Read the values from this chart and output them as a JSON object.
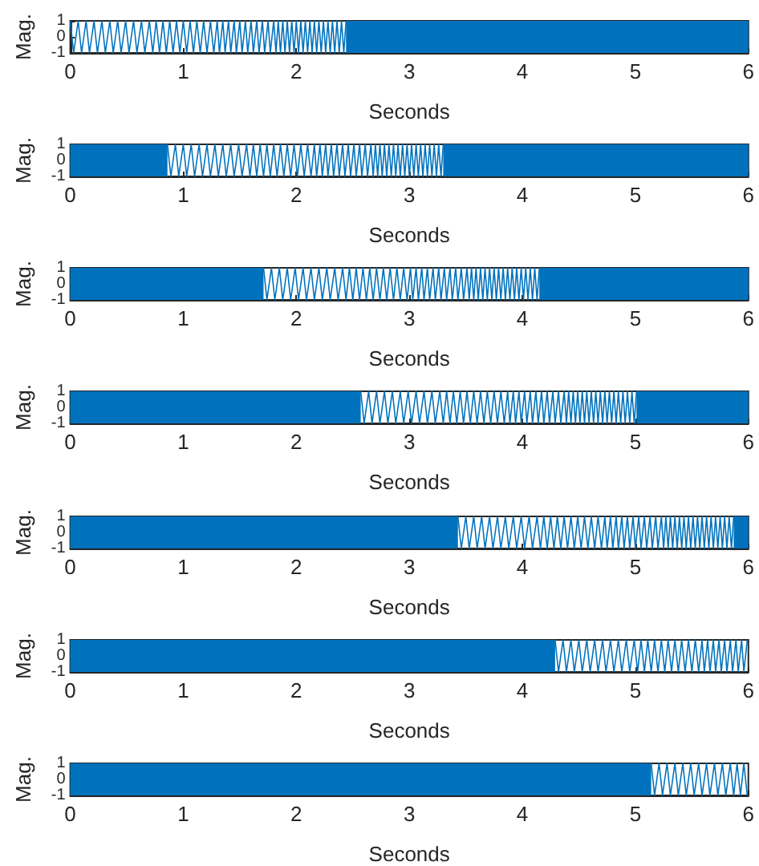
{
  "chart_data": [
    {
      "type": "line",
      "xlabel": "Seconds",
      "ylabel": "Mag.",
      "color": "#0072bd",
      "marker": "none",
      "xlim": [
        0,
        6
      ],
      "xticks": [
        0,
        1,
        2,
        3,
        4,
        5,
        6
      ],
      "ylim": [
        -1,
        1
      ],
      "yticks": [
        -1,
        0,
        1
      ],
      "x": [
        0,
        0.03,
        0.07,
        0.1,
        0.14,
        0.17,
        0.21,
        0.24,
        0.28,
        0.31,
        0.35,
        0.38,
        0.42,
        0.45,
        0.49,
        0.52,
        0.56,
        0.59,
        0.63,
        0.66,
        0.7,
        0.73,
        0.76,
        0.79,
        0.82,
        0.85,
        0.88,
        0.91,
        0.94,
        0.97,
        1.0,
        1.03,
        1.06,
        1.09,
        1.12,
        1.15,
        1.18,
        1.21,
        1.24,
        1.27,
        1.3,
        1.32,
        1.35,
        1.37,
        1.4,
        1.42,
        1.45,
        1.47,
        1.5,
        1.52,
        1.55,
        1.57,
        1.6,
        1.62,
        1.65,
        1.67,
        1.7,
        1.72,
        1.75,
        1.77,
        1.8,
        1.82,
        1.84,
        1.86,
        1.88,
        1.9,
        1.92,
        1.94,
        1.96,
        1.98,
        2.0,
        2.02,
        2.04,
        2.06,
        2.08,
        2.1,
        2.12,
        2.14,
        2.16,
        2.18,
        2.2,
        2.22,
        2.24,
        2.26,
        2.28,
        2.3,
        2.32,
        2.34,
        2.36,
        2.38,
        2.4,
        2.42,
        2.44
      ],
      "values": [
        1,
        -1,
        1,
        -1,
        1,
        -1,
        1,
        -1,
        1,
        -1,
        1,
        -1,
        1,
        -1,
        1,
        -1,
        1,
        -1,
        1,
        -1,
        1,
        -1,
        1,
        -1,
        1,
        -1,
        1,
        -1,
        1,
        -1,
        1,
        -1,
        1,
        -1,
        1,
        -1,
        1,
        -1,
        1,
        -1,
        1,
        -1,
        1,
        -1,
        1,
        -1,
        1,
        -1,
        1,
        -1,
        1,
        -1,
        1,
        -1,
        1,
        -1,
        1,
        -1,
        1,
        -1,
        1,
        -1,
        1,
        -1,
        1,
        -1,
        1,
        -1,
        1,
        -1,
        1,
        -1,
        1,
        -1,
        1,
        -1,
        1,
        -1,
        1,
        -1,
        1,
        -1,
        1,
        -1,
        1,
        -1,
        1,
        -1,
        1,
        -1,
        1,
        -1,
        1
      ],
      "bands": [
        {
          "axis": "x",
          "from": 2.44,
          "to": 6,
          "color": "#0072bd"
        }
      ]
    },
    {
      "type": "line",
      "xlabel": "Seconds",
      "ylabel": "Mag.",
      "color": "#0072bd",
      "marker": "none",
      "xlim": [
        0,
        6
      ],
      "xticks": [
        0,
        1,
        2,
        3,
        4,
        5,
        6
      ],
      "ylim": [
        -1,
        1
      ],
      "yticks": [
        -1,
        0,
        1
      ],
      "x": [
        0.86,
        0.89,
        0.93,
        0.96,
        1.0,
        1.03,
        1.07,
        1.1,
        1.14,
        1.17,
        1.21,
        1.24,
        1.28,
        1.31,
        1.35,
        1.38,
        1.42,
        1.45,
        1.49,
        1.52,
        1.56,
        1.59,
        1.62,
        1.65,
        1.68,
        1.71,
        1.74,
        1.77,
        1.8,
        1.83,
        1.86,
        1.89,
        1.92,
        1.95,
        1.98,
        2.01,
        2.04,
        2.07,
        2.1,
        2.13,
        2.16,
        2.18,
        2.21,
        2.23,
        2.26,
        2.28,
        2.31,
        2.33,
        2.36,
        2.38,
        2.41,
        2.43,
        2.46,
        2.48,
        2.51,
        2.53,
        2.56,
        2.58,
        2.61,
        2.63,
        2.66,
        2.68,
        2.7,
        2.72,
        2.74,
        2.76,
        2.78,
        2.8,
        2.82,
        2.84,
        2.86,
        2.88,
        2.9,
        2.92,
        2.94,
        2.96,
        2.98,
        3.0,
        3.02,
        3.04,
        3.06,
        3.08,
        3.1,
        3.12,
        3.14,
        3.16,
        3.18,
        3.2,
        3.22,
        3.24,
        3.26,
        3.28,
        3.3
      ],
      "values": [
        1,
        -1,
        1,
        -1,
        1,
        -1,
        1,
        -1,
        1,
        -1,
        1,
        -1,
        1,
        -1,
        1,
        -1,
        1,
        -1,
        1,
        -1,
        1,
        -1,
        1,
        -1,
        1,
        -1,
        1,
        -1,
        1,
        -1,
        1,
        -1,
        1,
        -1,
        1,
        -1,
        1,
        -1,
        1,
        -1,
        1,
        -1,
        1,
        -1,
        1,
        -1,
        1,
        -1,
        1,
        -1,
        1,
        -1,
        1,
        -1,
        1,
        -1,
        1,
        -1,
        1,
        -1,
        1,
        -1,
        1,
        -1,
        1,
        -1,
        1,
        -1,
        1,
        -1,
        1,
        -1,
        1,
        -1,
        1,
        -1,
        1,
        -1,
        1,
        -1,
        1,
        -1,
        1,
        -1,
        1,
        -1,
        1,
        -1,
        1,
        -1,
        1,
        -1,
        1
      ],
      "bands": [
        {
          "axis": "x",
          "from": 0,
          "to": 0.86,
          "color": "#0072bd"
        },
        {
          "axis": "x",
          "from": 3.3,
          "to": 6,
          "color": "#0072bd"
        }
      ]
    },
    {
      "type": "line",
      "xlabel": "Seconds",
      "ylabel": "Mag.",
      "color": "#0072bd",
      "marker": "none",
      "xlim": [
        0,
        6
      ],
      "xticks": [
        0,
        1,
        2,
        3,
        4,
        5,
        6
      ],
      "ylim": [
        -1,
        1
      ],
      "yticks": [
        -1,
        0,
        1
      ],
      "x": [
        1.71,
        1.74,
        1.78,
        1.81,
        1.85,
        1.88,
        1.92,
        1.95,
        1.99,
        2.02,
        2.06,
        2.09,
        2.13,
        2.16,
        2.2,
        2.23,
        2.27,
        2.3,
        2.34,
        2.37,
        2.41,
        2.44,
        2.47,
        2.5,
        2.53,
        2.56,
        2.59,
        2.62,
        2.65,
        2.68,
        2.71,
        2.74,
        2.77,
        2.8,
        2.83,
        2.86,
        2.89,
        2.92,
        2.95,
        2.98,
        3.01,
        3.03,
        3.06,
        3.08,
        3.11,
        3.13,
        3.16,
        3.18,
        3.21,
        3.23,
        3.26,
        3.28,
        3.31,
        3.33,
        3.36,
        3.38,
        3.41,
        3.43,
        3.46,
        3.48,
        3.51,
        3.53,
        3.55,
        3.57,
        3.59,
        3.61,
        3.63,
        3.65,
        3.67,
        3.69,
        3.71,
        3.73,
        3.75,
        3.77,
        3.79,
        3.81,
        3.83,
        3.85,
        3.87,
        3.89,
        3.91,
        3.93,
        3.95,
        3.97,
        3.99,
        4.01,
        4.03,
        4.05,
        4.07,
        4.09,
        4.11,
        4.13,
        4.15
      ],
      "values": [
        1,
        -1,
        1,
        -1,
        1,
        -1,
        1,
        -1,
        1,
        -1,
        1,
        -1,
        1,
        -1,
        1,
        -1,
        1,
        -1,
        1,
        -1,
        1,
        -1,
        1,
        -1,
        1,
        -1,
        1,
        -1,
        1,
        -1,
        1,
        -1,
        1,
        -1,
        1,
        -1,
        1,
        -1,
        1,
        -1,
        1,
        -1,
        1,
        -1,
        1,
        -1,
        1,
        -1,
        1,
        -1,
        1,
        -1,
        1,
        -1,
        1,
        -1,
        1,
        -1,
        1,
        -1,
        1,
        -1,
        1,
        -1,
        1,
        -1,
        1,
        -1,
        1,
        -1,
        1,
        -1,
        1,
        -1,
        1,
        -1,
        1,
        -1,
        1,
        -1,
        1,
        -1,
        1,
        -1,
        1,
        -1,
        1,
        -1,
        1,
        -1,
        1,
        -1,
        1
      ],
      "bands": [
        {
          "axis": "x",
          "from": 0,
          "to": 1.71,
          "color": "#0072bd"
        },
        {
          "axis": "x",
          "from": 4.15,
          "to": 6,
          "color": "#0072bd"
        }
      ]
    },
    {
      "type": "line",
      "xlabel": "Seconds",
      "ylabel": "Mag.",
      "color": "#0072bd",
      "marker": "none",
      "xlim": [
        0,
        6
      ],
      "xticks": [
        0,
        1,
        2,
        3,
        4,
        5,
        6
      ],
      "ylim": [
        -1,
        1
      ],
      "yticks": [
        -1,
        0,
        1
      ],
      "x": [
        2.57,
        2.6,
        2.64,
        2.67,
        2.71,
        2.74,
        2.78,
        2.81,
        2.85,
        2.88,
        2.92,
        2.95,
        2.99,
        3.02,
        3.06,
        3.09,
        3.13,
        3.16,
        3.2,
        3.23,
        3.27,
        3.3,
        3.33,
        3.36,
        3.39,
        3.42,
        3.45,
        3.48,
        3.51,
        3.54,
        3.57,
        3.6,
        3.63,
        3.66,
        3.69,
        3.72,
        3.75,
        3.78,
        3.81,
        3.84,
        3.87,
        3.89,
        3.92,
        3.94,
        3.97,
        3.99,
        4.02,
        4.04,
        4.07,
        4.09,
        4.12,
        4.14,
        4.17,
        4.19,
        4.22,
        4.24,
        4.27,
        4.29,
        4.32,
        4.34,
        4.37,
        4.39,
        4.41,
        4.43,
        4.45,
        4.47,
        4.49,
        4.51,
        4.53,
        4.55,
        4.57,
        4.59,
        4.61,
        4.63,
        4.65,
        4.67,
        4.69,
        4.71,
        4.73,
        4.75,
        4.77,
        4.79,
        4.81,
        4.83,
        4.85,
        4.87,
        4.89,
        4.91,
        4.93,
        4.95,
        4.97,
        4.99,
        5.01
      ],
      "values": [
        1,
        -1,
        1,
        -1,
        1,
        -1,
        1,
        -1,
        1,
        -1,
        1,
        -1,
        1,
        -1,
        1,
        -1,
        1,
        -1,
        1,
        -1,
        1,
        -1,
        1,
        -1,
        1,
        -1,
        1,
        -1,
        1,
        -1,
        1,
        -1,
        1,
        -1,
        1,
        -1,
        1,
        -1,
        1,
        -1,
        1,
        -1,
        1,
        -1,
        1,
        -1,
        1,
        -1,
        1,
        -1,
        1,
        -1,
        1,
        -1,
        1,
        -1,
        1,
        -1,
        1,
        -1,
        1,
        -1,
        1,
        -1,
        1,
        -1,
        1,
        -1,
        1,
        -1,
        1,
        -1,
        1,
        -1,
        1,
        -1,
        1,
        -1,
        1,
        -1,
        1,
        -1,
        1,
        -1,
        1,
        -1,
        1,
        -1,
        1,
        -1,
        1,
        -1,
        1
      ],
      "bands": [
        {
          "axis": "x",
          "from": 0,
          "to": 2.57,
          "color": "#0072bd"
        },
        {
          "axis": "x",
          "from": 5.01,
          "to": 6,
          "color": "#0072bd"
        }
      ]
    },
    {
      "type": "line",
      "xlabel": "Seconds",
      "ylabel": "Mag.",
      "color": "#0072bd",
      "marker": "none",
      "xlim": [
        0,
        6
      ],
      "xticks": [
        0,
        1,
        2,
        3,
        4,
        5,
        6
      ],
      "ylim": [
        -1,
        1
      ],
      "yticks": [
        -1,
        0,
        1
      ],
      "x": [
        3.43,
        3.46,
        3.5,
        3.53,
        3.57,
        3.6,
        3.64,
        3.67,
        3.71,
        3.74,
        3.78,
        3.81,
        3.85,
        3.88,
        3.92,
        3.95,
        3.99,
        4.02,
        4.06,
        4.09,
        4.13,
        4.16,
        4.19,
        4.22,
        4.25,
        4.28,
        4.31,
        4.34,
        4.37,
        4.4,
        4.43,
        4.46,
        4.49,
        4.52,
        4.55,
        4.58,
        4.61,
        4.64,
        4.67,
        4.7,
        4.73,
        4.75,
        4.78,
        4.8,
        4.83,
        4.85,
        4.88,
        4.9,
        4.93,
        4.95,
        4.98,
        5.0,
        5.03,
        5.05,
        5.08,
        5.1,
        5.13,
        5.15,
        5.18,
        5.2,
        5.23,
        5.25,
        5.27,
        5.29,
        5.31,
        5.33,
        5.35,
        5.37,
        5.39,
        5.41,
        5.43,
        5.45,
        5.47,
        5.49,
        5.51,
        5.53,
        5.55,
        5.57,
        5.59,
        5.61,
        5.63,
        5.65,
        5.67,
        5.69,
        5.71,
        5.73,
        5.75,
        5.77,
        5.79,
        5.81,
        5.83,
        5.85,
        5.87
      ],
      "values": [
        1,
        -1,
        1,
        -1,
        1,
        -1,
        1,
        -1,
        1,
        -1,
        1,
        -1,
        1,
        -1,
        1,
        -1,
        1,
        -1,
        1,
        -1,
        1,
        -1,
        1,
        -1,
        1,
        -1,
        1,
        -1,
        1,
        -1,
        1,
        -1,
        1,
        -1,
        1,
        -1,
        1,
        -1,
        1,
        -1,
        1,
        -1,
        1,
        -1,
        1,
        -1,
        1,
        -1,
        1,
        -1,
        1,
        -1,
        1,
        -1,
        1,
        -1,
        1,
        -1,
        1,
        -1,
        1,
        -1,
        1,
        -1,
        1,
        -1,
        1,
        -1,
        1,
        -1,
        1,
        -1,
        1,
        -1,
        1,
        -1,
        1,
        -1,
        1,
        -1,
        1,
        -1,
        1,
        -1,
        1,
        -1,
        1,
        -1,
        1,
        -1,
        1,
        -1,
        1
      ],
      "bands": [
        {
          "axis": "x",
          "from": 0,
          "to": 3.43,
          "color": "#0072bd"
        },
        {
          "axis": "x",
          "from": 5.87,
          "to": 6,
          "color": "#0072bd"
        }
      ]
    },
    {
      "type": "line",
      "xlabel": "Seconds",
      "ylabel": "Mag.",
      "color": "#0072bd",
      "marker": "none",
      "xlim": [
        0,
        6
      ],
      "xticks": [
        0,
        1,
        2,
        3,
        4,
        5,
        6
      ],
      "ylim": [
        -1,
        1
      ],
      "yticks": [
        -1,
        0,
        1
      ],
      "x": [
        4.29,
        4.32,
        4.36,
        4.39,
        4.43,
        4.46,
        4.5,
        4.53,
        4.57,
        4.6,
        4.64,
        4.67,
        4.71,
        4.74,
        4.78,
        4.81,
        4.85,
        4.88,
        4.92,
        4.95,
        4.99,
        5.02,
        5.05,
        5.08,
        5.11,
        5.14,
        5.17,
        5.2,
        5.23,
        5.26,
        5.29,
        5.32,
        5.35,
        5.38,
        5.41,
        5.44,
        5.47,
        5.5,
        5.53,
        5.56,
        5.59,
        5.61,
        5.64,
        5.66,
        5.69,
        5.71,
        5.74,
        5.76,
        5.79,
        5.81,
        5.84,
        5.86,
        5.89,
        5.91,
        5.94,
        5.96,
        5.99
      ],
      "values": [
        1,
        -1,
        1,
        -1,
        1,
        -1,
        1,
        -1,
        1,
        -1,
        1,
        -1,
        1,
        -1,
        1,
        -1,
        1,
        -1,
        1,
        -1,
        1,
        -1,
        1,
        -1,
        1,
        -1,
        1,
        -1,
        1,
        -1,
        1,
        -1,
        1,
        -1,
        1,
        -1,
        1,
        -1,
        1,
        -1,
        1,
        -1,
        1,
        -1,
        1,
        -1,
        1,
        -1,
        1,
        -1,
        1,
        -1,
        1,
        -1,
        1,
        -1,
        1
      ],
      "bands": [
        {
          "axis": "x",
          "from": 0,
          "to": 4.29,
          "color": "#0072bd"
        }
      ]
    },
    {
      "type": "line",
      "xlabel": "Seconds",
      "ylabel": "Mag.",
      "color": "#0072bd",
      "marker": "none",
      "xlim": [
        0,
        6
      ],
      "xticks": [
        0,
        1,
        2,
        3,
        4,
        5,
        6
      ],
      "ylim": [
        -1,
        1
      ],
      "yticks": [
        -1,
        0,
        1
      ],
      "x": [
        5.14,
        5.17,
        5.21,
        5.24,
        5.28,
        5.31,
        5.35,
        5.38,
        5.42,
        5.45,
        5.49,
        5.52,
        5.56,
        5.59,
        5.63,
        5.66,
        5.7,
        5.73,
        5.77,
        5.8,
        5.84,
        5.87,
        5.9,
        5.93,
        5.96,
        5.99
      ],
      "values": [
        1,
        -1,
        1,
        -1,
        1,
        -1,
        1,
        -1,
        1,
        -1,
        1,
        -1,
        1,
        -1,
        1,
        -1,
        1,
        -1,
        1,
        -1,
        1,
        -1,
        1,
        -1,
        1,
        -1
      ],
      "bands": [
        {
          "axis": "x",
          "from": 0,
          "to": 5.14,
          "color": "#0072bd"
        }
      ]
    }
  ]
}
